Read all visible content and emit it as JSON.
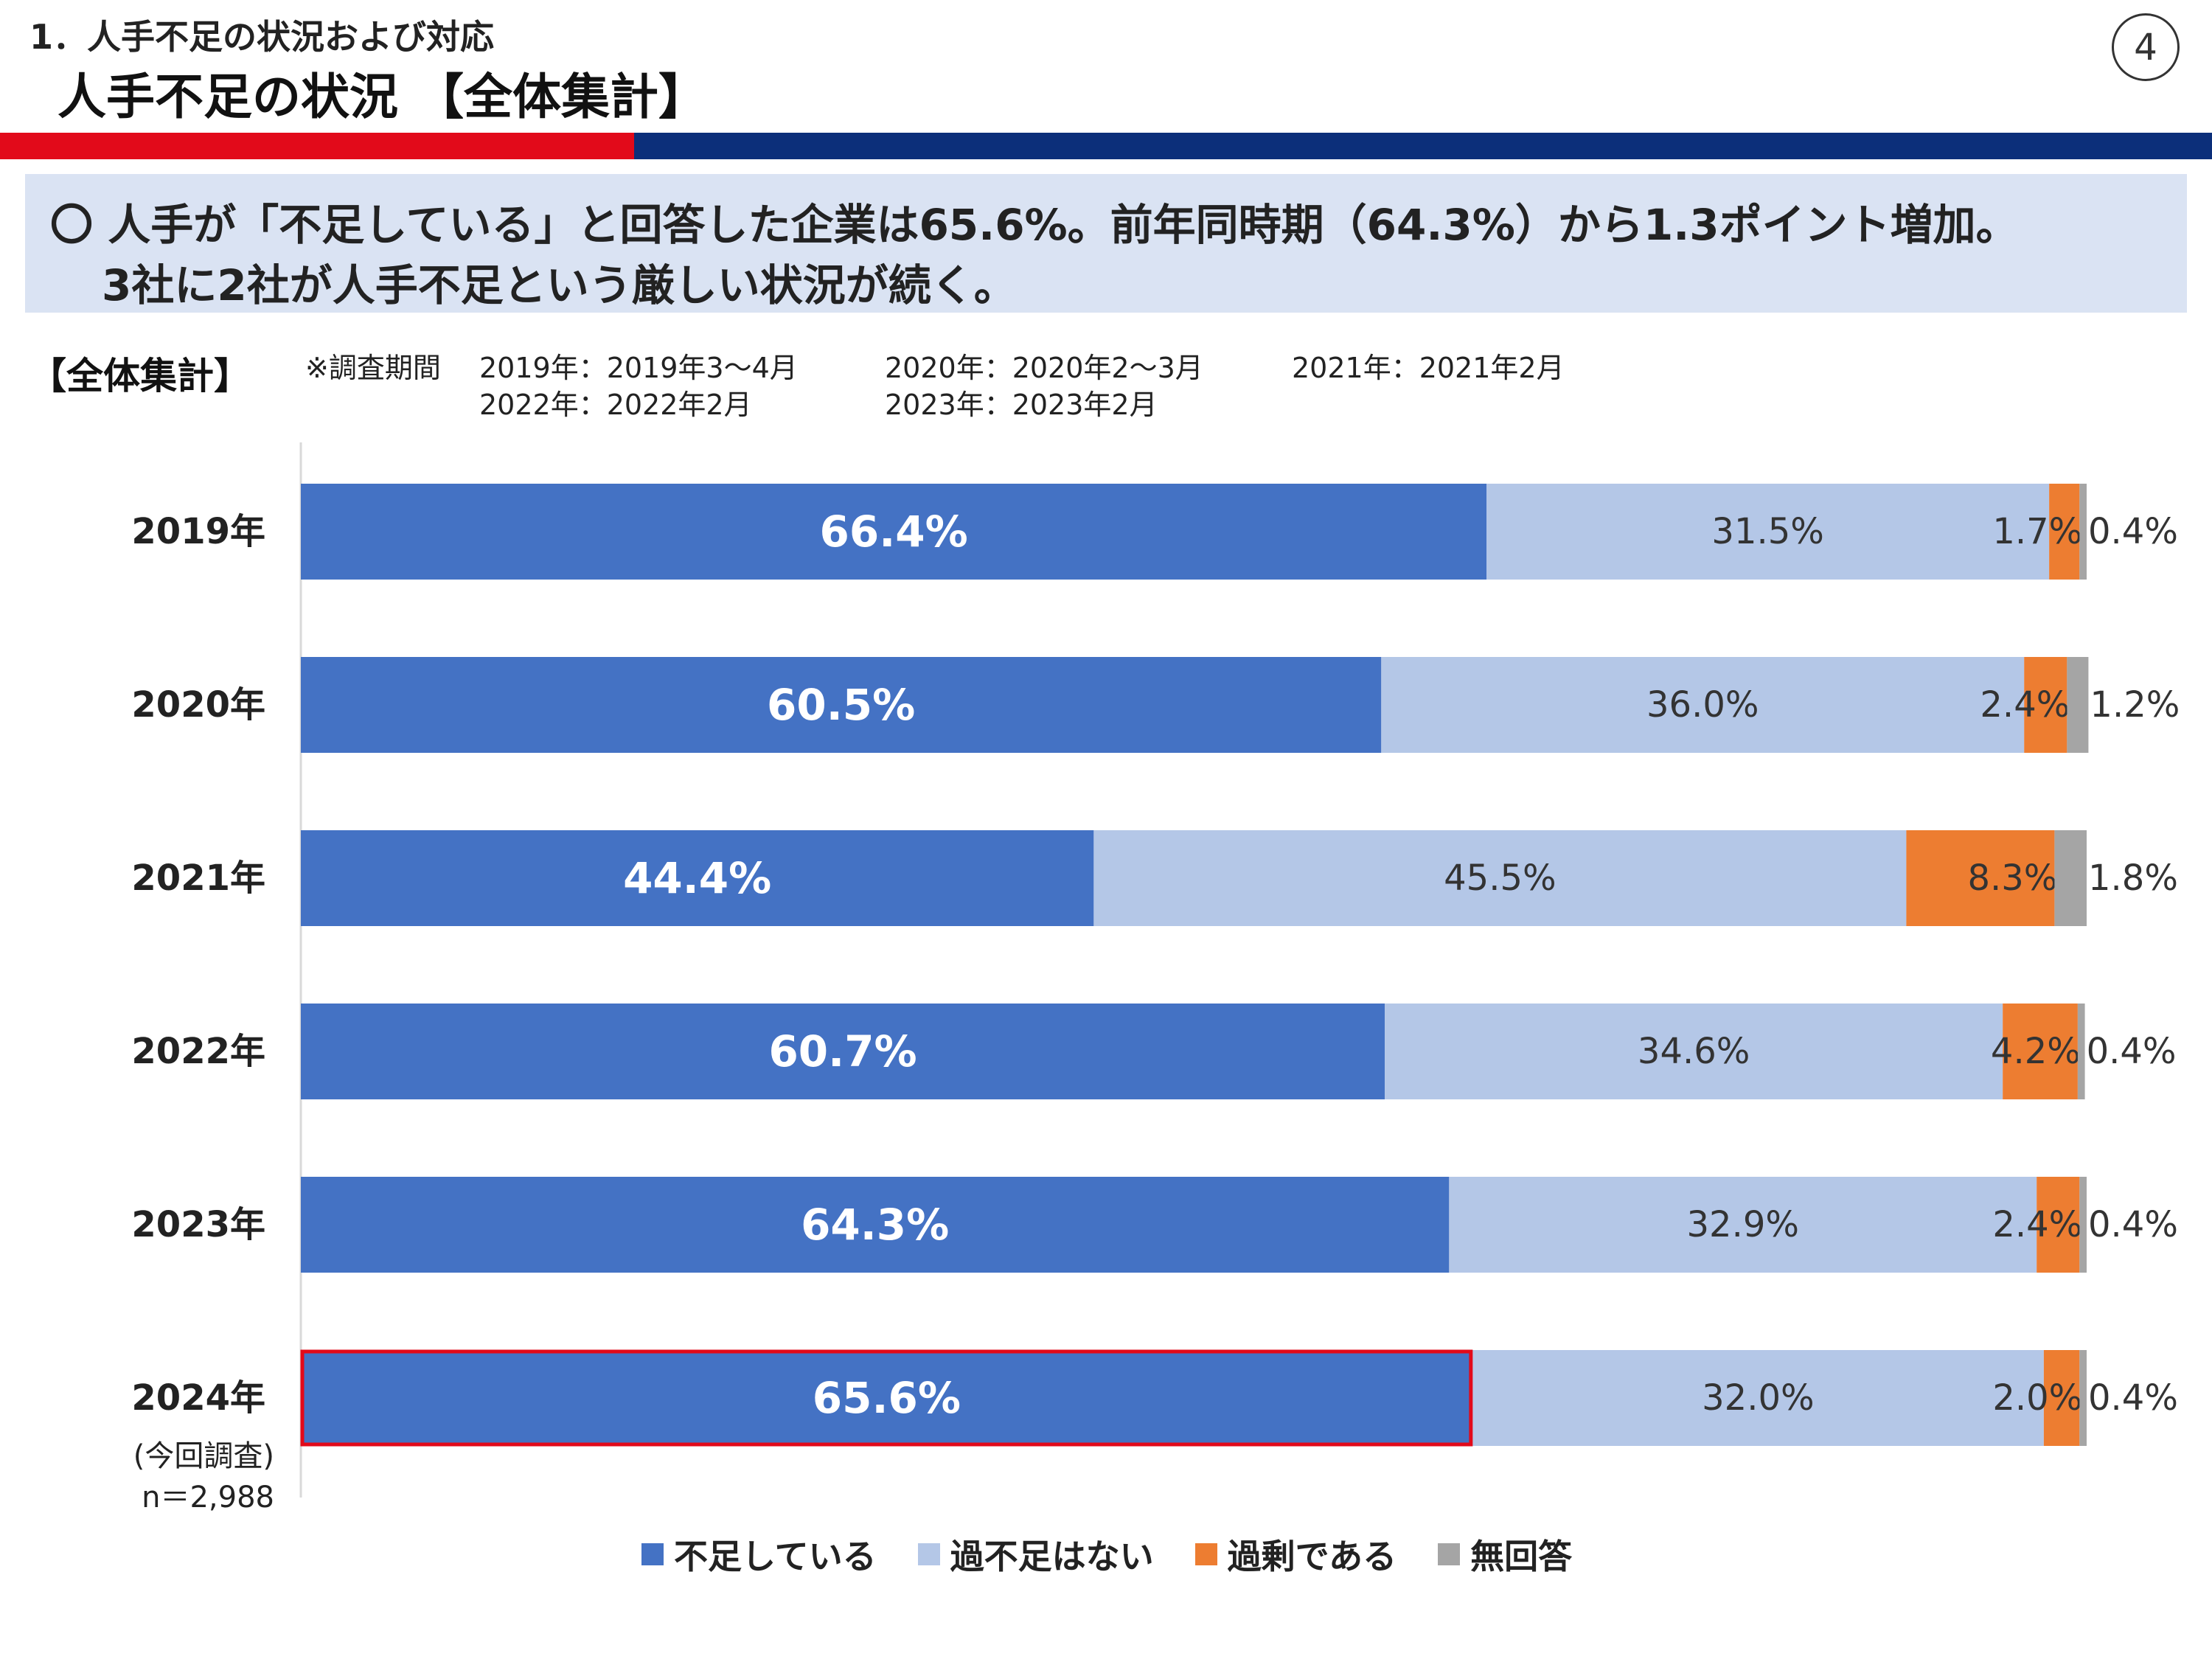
{
  "header": {
    "section_title": "1．人手不足の状況および対応",
    "title": "人手不足の状況 【全体集計】",
    "page_number": "4"
  },
  "colors": {
    "accent_red": "#e20a1a",
    "accent_navy": "#0c2f7a",
    "summary_bg": "#dae3f3"
  },
  "summary": {
    "line1": "〇 人手が「不足している」と回答した企業は65.6%。前年同時期（64.3%）から1.3ポイント増加。",
    "line2": "3社に2社が人手不足という厳しい状況が続く。"
  },
  "scope_label": "【全体集計】",
  "survey_period": {
    "label": "※調査期間",
    "p2019": "2019年：2019年3～4月",
    "p2020": "2020年：2020年2～3月",
    "p2021": "2021年：2021年2月",
    "p2022": "2022年：2022年2月",
    "p2023": "2023年：2023年2月"
  },
  "chart_data": {
    "type": "bar",
    "orientation": "horizontal",
    "stacked": true,
    "xlim": [
      0,
      100
    ],
    "categories": [
      "2019年",
      "2020年",
      "2021年",
      "2022年",
      "2023年",
      "2024年"
    ],
    "category_notes": {
      "2024年": [
        "(今回調査)",
        "n＝2,988"
      ]
    },
    "highlight": {
      "category": "2024年",
      "series": "不足している",
      "color": "#e20a1a"
    },
    "series": [
      {
        "name": "不足している",
        "color": "#4472c4",
        "values": [
          66.4,
          60.5,
          44.4,
          60.7,
          64.3,
          65.6
        ]
      },
      {
        "name": "過不足はない",
        "color": "#b4c7e7",
        "values": [
          31.5,
          36.0,
          45.5,
          34.6,
          32.9,
          32.0
        ]
      },
      {
        "name": "過剰である",
        "color": "#ed7d31",
        "values": [
          1.7,
          2.4,
          8.3,
          4.2,
          2.4,
          2.0
        ]
      },
      {
        "name": "無回答",
        "color": "#a5a5a5",
        "values": [
          0.4,
          1.2,
          1.8,
          0.4,
          0.4,
          0.4
        ]
      }
    ],
    "labels": [
      [
        "66.4%",
        "31.5%",
        "1.7%",
        "0.4%"
      ],
      [
        "60.5%",
        "36.0%",
        "2.4%",
        "1.2%"
      ],
      [
        "44.4%",
        "45.5%",
        "8.3%",
        "1.8%"
      ],
      [
        "60.7%",
        "34.6%",
        "4.2%",
        "0.4%"
      ],
      [
        "64.3%",
        "32.9%",
        "2.4%",
        "0.4%"
      ],
      [
        "65.6%",
        "32.0%",
        "2.0%",
        "0.4%"
      ]
    ],
    "grid": false,
    "legend_position": "bottom"
  }
}
